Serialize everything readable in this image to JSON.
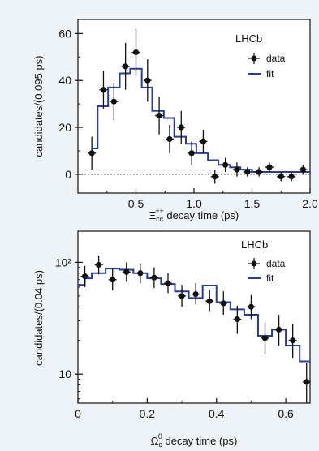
{
  "chart_data": [
    {
      "type": "scatter",
      "xlabel_main": "Ξ",
      "xlabel_sub": "cc",
      "xlabel_sup": "++",
      "xlabel_rest": " decay time (ps)",
      "ylabel": "candidates/(0.095 ps)",
      "xlim": [
        0.0,
        2.0
      ],
      "ylim": [
        -8,
        66
      ],
      "xticks": [
        0.5,
        1.0,
        1.5,
        2.0
      ],
      "xticklabels": [
        "0.5",
        "1.0",
        "1.5",
        "2.0"
      ],
      "yticks": [
        0,
        20,
        40,
        60
      ],
      "yticklabels": [
        "0",
        "20",
        "40",
        "60"
      ],
      "log": false,
      "zero_line": true,
      "label": "LHCb",
      "legend": {
        "data_label": "data",
        "fit_label": "fit",
        "position": "top-right"
      },
      "data": {
        "x": [
          0.12,
          0.22,
          0.31,
          0.41,
          0.5,
          0.6,
          0.7,
          0.79,
          0.89,
          0.98,
          1.08,
          1.18,
          1.27,
          1.37,
          1.46,
          1.56,
          1.65,
          1.75,
          1.84,
          1.94
        ],
        "y": [
          9,
          36,
          31,
          46,
          52,
          40,
          25,
          15,
          20,
          9,
          14,
          -1,
          4,
          2,
          1,
          1,
          3,
          -1,
          -1,
          2
        ],
        "err": [
          7,
          8,
          8,
          10,
          10,
          9,
          8,
          6,
          7,
          5,
          5,
          3,
          3,
          3,
          2,
          2,
          2,
          2,
          2,
          2
        ]
      },
      "fit": {
        "edges": [
          0.12,
          0.17,
          0.26,
          0.36,
          0.45,
          0.55,
          0.64,
          0.74,
          0.83,
          0.93,
          1.02,
          1.12,
          1.21,
          1.31,
          1.4,
          1.5,
          1.59,
          1.69,
          1.78,
          1.88,
          2.0
        ],
        "values": [
          11,
          29,
          37,
          43,
          45,
          37,
          27,
          24,
          16,
          13,
          9,
          6,
          4,
          3,
          2,
          1,
          1,
          1,
          1,
          1
        ],
        "color": "#2b3b95"
      }
    },
    {
      "type": "scatter",
      "xlabel_main": "Ω",
      "xlabel_sub": "c",
      "xlabel_sup": "0",
      "xlabel_rest": " decay time (ps)",
      "ylabel": "candidates/(0.04 ps)",
      "xlim": [
        0.0,
        0.67
      ],
      "ylim": [
        5.5,
        190
      ],
      "xticks": [
        0,
        0.2,
        0.4,
        0.6
      ],
      "xticklabels": [
        "0",
        "0.2",
        "0.4",
        "0.6"
      ],
      "yticks": [
        10,
        100
      ],
      "yticklabels": [
        "10",
        "10²"
      ],
      "log": true,
      "zero_line": false,
      "label": "LHCb",
      "legend": {
        "data_label": "data",
        "fit_label": "fit",
        "position": "top-right"
      },
      "data": {
        "x": [
          0.02,
          0.06,
          0.1,
          0.14,
          0.18,
          0.22,
          0.26,
          0.3,
          0.34,
          0.38,
          0.42,
          0.46,
          0.5,
          0.54,
          0.58,
          0.62,
          0.66
        ],
        "y": [
          75,
          95,
          70,
          82,
          80,
          73,
          65,
          50,
          52,
          45,
          43,
          31,
          40,
          21,
          25,
          20,
          8.5
        ],
        "err_up": [
          18,
          20,
          17,
          18,
          18,
          17,
          15,
          13,
          13,
          12,
          12,
          10,
          11,
          8,
          9,
          8,
          4
        ],
        "err_down": [
          15,
          17,
          14,
          15,
          15,
          14,
          12,
          10,
          10,
          9,
          9,
          8,
          9,
          6,
          7,
          6,
          3
        ]
      },
      "fit": {
        "edges": [
          0.0,
          0.02,
          0.04,
          0.08,
          0.12,
          0.16,
          0.2,
          0.24,
          0.28,
          0.32,
          0.36,
          0.4,
          0.44,
          0.48,
          0.52,
          0.56,
          0.6,
          0.64,
          0.67
        ],
        "values": [
          63,
          72,
          80,
          88,
          86,
          80,
          72,
          64,
          55,
          48,
          62,
          44,
          38,
          34,
          22,
          25,
          18,
          13
        ],
        "color": "#2b3b95"
      }
    }
  ]
}
